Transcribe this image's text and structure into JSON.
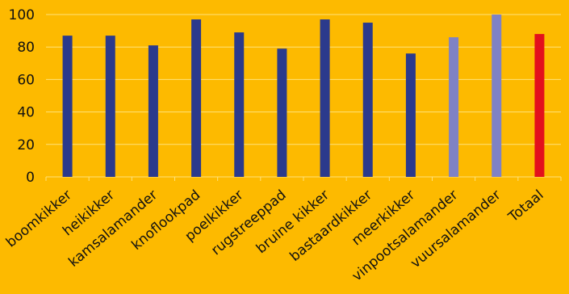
{
  "chart_data": {
    "type": "bar",
    "title": "",
    "xlabel": "",
    "ylabel": "",
    "ylim": [
      0,
      100
    ],
    "yticks": [
      0,
      20,
      40,
      60,
      80,
      100
    ],
    "grid": true,
    "legend": "none",
    "background_color": "#FDBA00",
    "gridline_color": "#FFE27A",
    "categories": [
      "boomkikker",
      "heikikker",
      "kamsalamander",
      "knoflookpad",
      "poelkikker",
      "rugstreeppad",
      "bruine kikker",
      "bastaardkikker",
      "meerkikker",
      "vinpootsalamander",
      "vuursalamander",
      "Totaal"
    ],
    "values": [
      87,
      87,
      81,
      97,
      89,
      79,
      97,
      95,
      76,
      86,
      100,
      88
    ],
    "bar_colors": [
      "#2B3A8C",
      "#2B3A8C",
      "#2B3A8C",
      "#2B3A8C",
      "#2B3A8C",
      "#2B3A8C",
      "#2B3A8C",
      "#2B3A8C",
      "#2B3A8C",
      "#7F82C4",
      "#7F82C4",
      "#E3101C"
    ]
  }
}
